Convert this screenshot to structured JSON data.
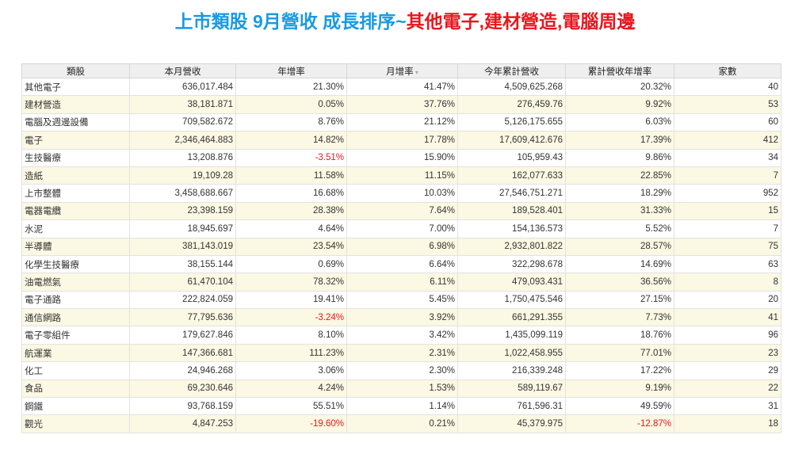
{
  "title": {
    "lead": "上市類股 9月營收 成長排序~",
    "highlight": "其他電子,建材營造,電腦周邊"
  },
  "table": {
    "header": [
      "類股",
      "本月營收",
      "年增率",
      "月增率",
      "今年累計營收",
      "累計營收年增率",
      "家數"
    ],
    "rows": [
      [
        "其他電子",
        "636,017.484",
        "21.30%",
        "41.47%",
        "4,509,625.268",
        "20.32%",
        "40"
      ],
      [
        "建材營造",
        "38,181.871",
        "0.05%",
        "37.76%",
        "276,459.76",
        "9.92%",
        "53"
      ],
      [
        "電腦及週邊設備",
        "709,582.672",
        "8.76%",
        "21.12%",
        "5,126,175.655",
        "6.03%",
        "60"
      ],
      [
        "電子",
        "2,346,464.883",
        "14.82%",
        "17.78%",
        "17,609,412.676",
        "17.39%",
        "412"
      ],
      [
        "生技醫療",
        "13,208.876",
        "-3.51%",
        "15.90%",
        "105,959.43",
        "9.86%",
        "34"
      ],
      [
        "造紙",
        "19,109.28",
        "11.58%",
        "11.15%",
        "162,077.633",
        "22.85%",
        "7"
      ],
      [
        "上市整體",
        "3,458,688.667",
        "16.68%",
        "10.03%",
        "27,546,751.271",
        "18.29%",
        "952"
      ],
      [
        "電器電纜",
        "23,398.159",
        "28.38%",
        "7.64%",
        "189,528.401",
        "31.33%",
        "15"
      ],
      [
        "水泥",
        "18,945.697",
        "4.64%",
        "7.00%",
        "154,136.573",
        "5.52%",
        "7"
      ],
      [
        "半導體",
        "381,143.019",
        "23.54%",
        "6.98%",
        "2,932,801.822",
        "28.57%",
        "75"
      ],
      [
        "化學生技醫療",
        "38,155.144",
        "0.69%",
        "6.64%",
        "322,298.678",
        "14.69%",
        "63"
      ],
      [
        "油電燃氣",
        "61,470.104",
        "78.32%",
        "6.11%",
        "479,093.431",
        "36.56%",
        "8"
      ],
      [
        "電子通路",
        "222,824.059",
        "19.41%",
        "5.45%",
        "1,750,475.546",
        "27.15%",
        "20"
      ],
      [
        "通信網路",
        "77,795.636",
        "-3.24%",
        "3.92%",
        "661,291.355",
        "7.73%",
        "41"
      ],
      [
        "電子零組件",
        "179,627.846",
        "8.10%",
        "3.42%",
        "1,435,099.119",
        "18.76%",
        "96"
      ],
      [
        "航運業",
        "147,366.681",
        "111.23%",
        "2.31%",
        "1,022,458.955",
        "77.01%",
        "23"
      ],
      [
        "化工",
        "24,946.268",
        "3.06%",
        "2.30%",
        "216,339.248",
        "17.22%",
        "29"
      ],
      [
        "食品",
        "69,230.646",
        "4.24%",
        "1.53%",
        "589,119.67",
        "9.19%",
        "22"
      ],
      [
        "鋼鐵",
        "93,768.159",
        "55.51%",
        "1.14%",
        "761,596.31",
        "49.59%",
        "31"
      ],
      [
        "觀光",
        "4,847.253",
        "-19.60%",
        "0.21%",
        "45,379.975",
        "-12.87%",
        "18"
      ]
    ]
  }
}
